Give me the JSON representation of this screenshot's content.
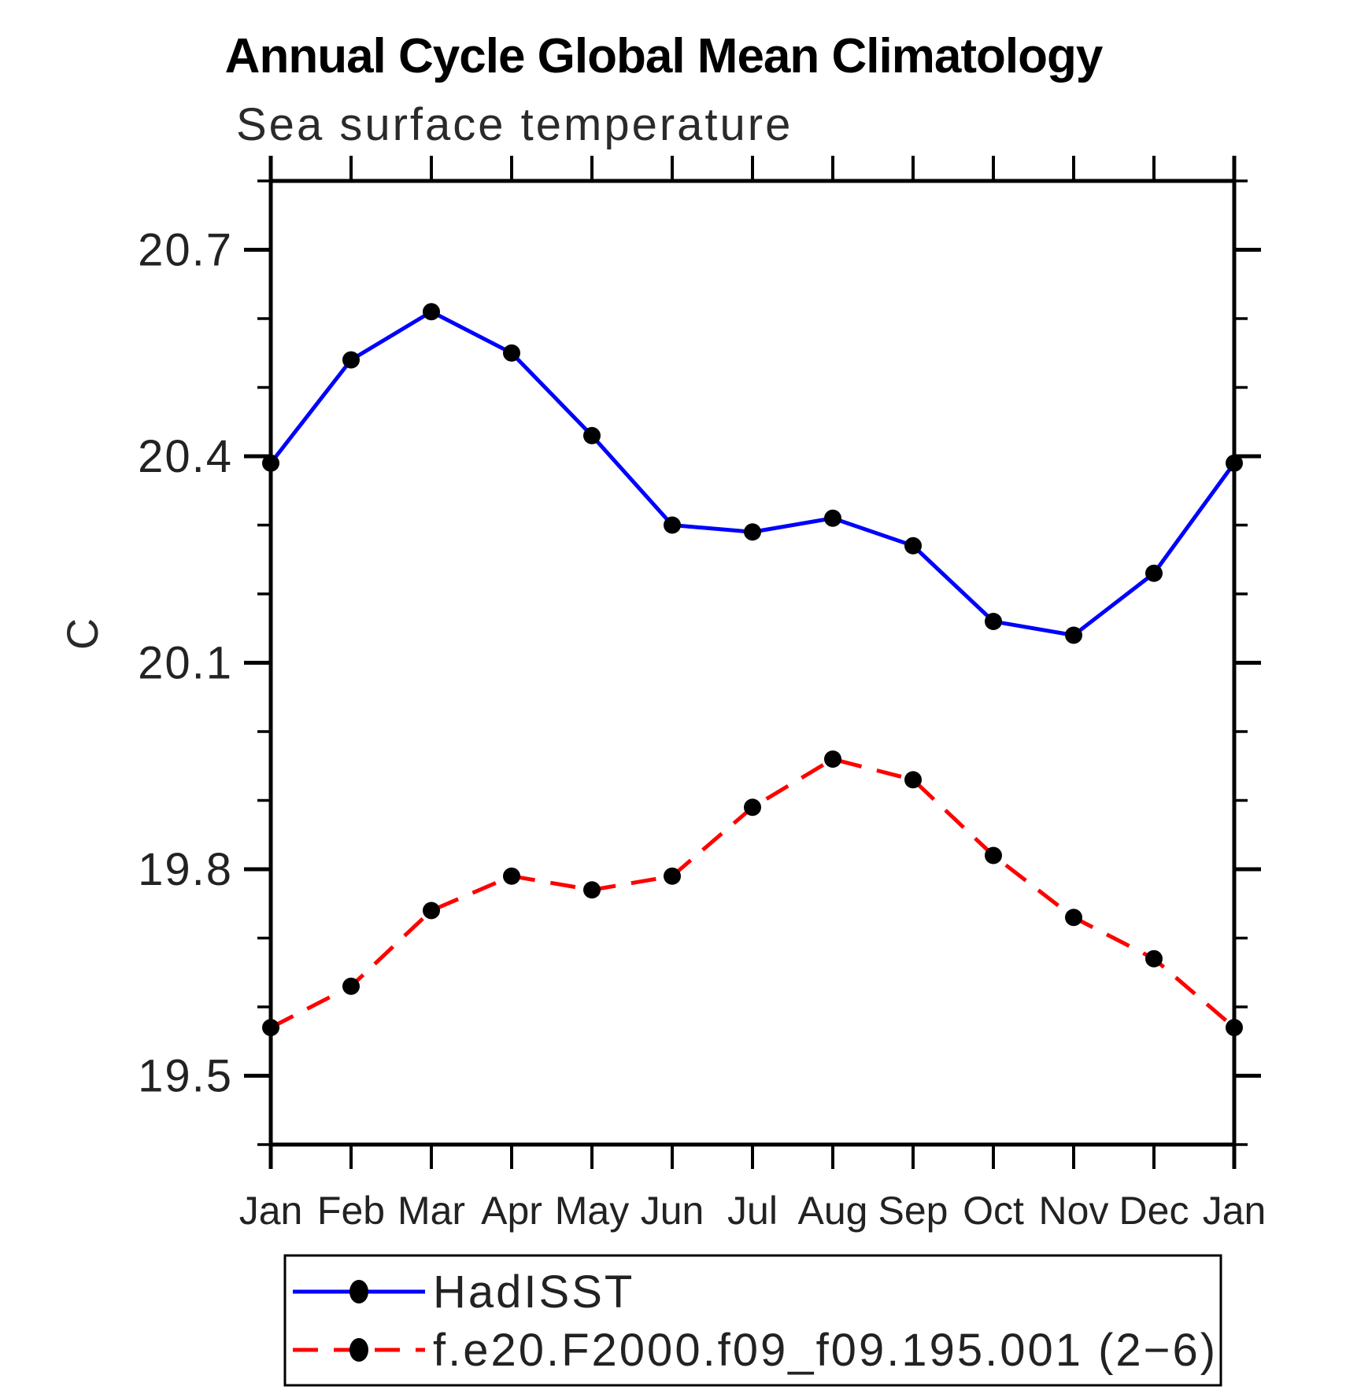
{
  "chart_data": {
    "type": "line",
    "title": "Annual Cycle Global Mean Climatology",
    "subtitle": "Sea surface temperature",
    "xlabel": "",
    "ylabel": "C",
    "categories": [
      "Jan",
      "Feb",
      "Mar",
      "Apr",
      "May",
      "Jun",
      "Jul",
      "Aug",
      "Sep",
      "Oct",
      "Nov",
      "Dec",
      "Jan"
    ],
    "ylim": [
      19.4,
      20.8
    ],
    "y_major_ticks": [
      20.7,
      20.4,
      20.1,
      19.8,
      19.5
    ],
    "y_minor_step": 0.1,
    "grid": false,
    "legend_position": "bottom-left-box",
    "axis_color": "#000000",
    "series": [
      {
        "name": "HadISST",
        "line_color": "#0000ff",
        "line_style": "solid",
        "marker": "filled-circle",
        "marker_color": "#000000",
        "values": [
          20.39,
          20.54,
          20.61,
          20.55,
          20.43,
          20.3,
          20.29,
          20.31,
          20.27,
          20.16,
          20.14,
          20.23,
          20.39
        ]
      },
      {
        "name": "f.e20.F2000.f09_f09.195.001 (2−6)",
        "line_color": "#ff0000",
        "line_style": "dashed",
        "marker": "filled-circle",
        "marker_color": "#000000",
        "values": [
          19.57,
          19.63,
          19.74,
          19.79,
          19.77,
          19.79,
          19.89,
          19.96,
          19.93,
          19.82,
          19.73,
          19.67,
          19.57
        ]
      }
    ]
  }
}
